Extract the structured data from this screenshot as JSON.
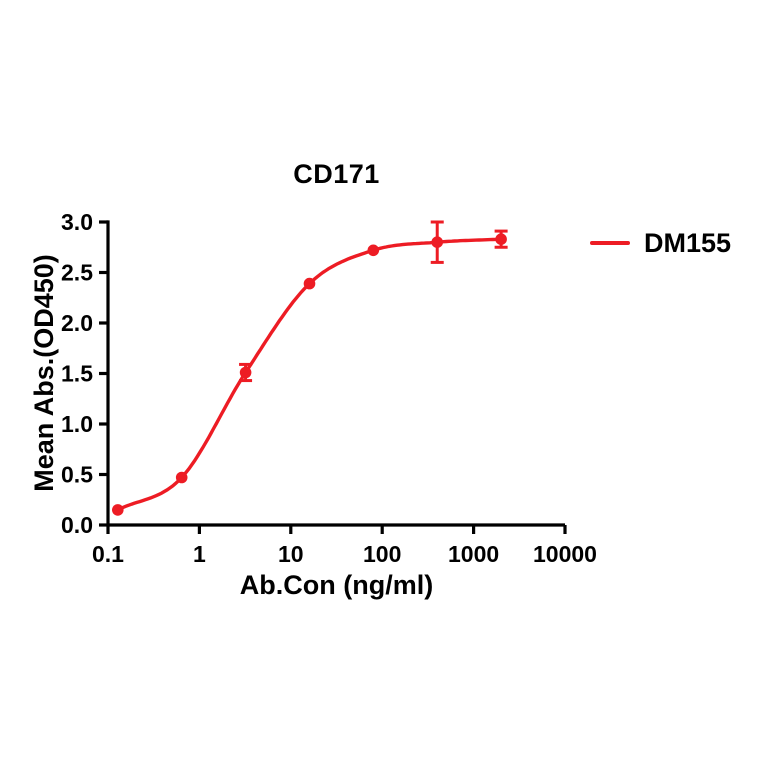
{
  "page": {
    "background": "#ffffff"
  },
  "chart_data": {
    "type": "scatter",
    "title": "CD171",
    "xlabel": "Ab.Con (ng/ml)",
    "ylabel": "Mean Abs.(OD450)",
    "x_scale": "log10",
    "xlim": [
      0.1,
      10000
    ],
    "ylim": [
      0.0,
      3.0
    ],
    "grid": false,
    "axis_color": "#000000",
    "x_ticks": [
      0.1,
      1,
      10,
      100,
      1000,
      10000
    ],
    "x_tick_labels": [
      "0.1",
      "1",
      "10",
      "100",
      "1000",
      "10000"
    ],
    "y_ticks": [
      0.0,
      0.5,
      1.0,
      1.5,
      2.0,
      2.5,
      3.0
    ],
    "y_tick_labels": [
      "0.0",
      "0.5",
      "1.0",
      "1.5",
      "2.0",
      "2.5",
      "3.0"
    ],
    "legend": {
      "position": "right",
      "entries": [
        {
          "label": "DM155",
          "color": "#ed1c24",
          "marker": "line"
        }
      ]
    },
    "series": [
      {
        "name": "DM155",
        "color": "#ed1c24",
        "marker": "circle",
        "curve": "smooth-sigmoid",
        "points": [
          {
            "x": 0.128,
            "y": 0.15
          },
          {
            "x": 0.64,
            "y": 0.47
          },
          {
            "x": 3.2,
            "y": 1.51,
            "err": 0.08
          },
          {
            "x": 16,
            "y": 2.39
          },
          {
            "x": 80,
            "y": 2.72
          },
          {
            "x": 400,
            "y": 2.8,
            "err": 0.2
          },
          {
            "x": 2000,
            "y": 2.83,
            "err": 0.08
          }
        ]
      }
    ]
  }
}
